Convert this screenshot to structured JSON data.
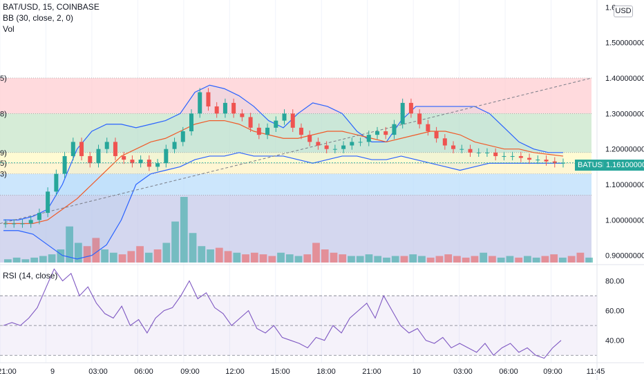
{
  "header": {
    "symbol_line": "BAT/USD, 15, COINBASE",
    "bb_line": "BB (30, close, 2, 0)",
    "vol_line": "Vol",
    "rsi_line": "RSI (14, close)"
  },
  "price_axis": {
    "currency": "USD",
    "ticks": [
      "1.6",
      "1.50000000",
      "1.40000000",
      "1.30000000",
      "1.20000000",
      "1.10000000",
      "1.00000000",
      "0.90000000"
    ],
    "last_symbol": "BATUSD",
    "last_value": "1.16100000"
  },
  "rsi_axis": {
    "ticks": [
      "80.00",
      "60.00",
      "40.00"
    ]
  },
  "time_axis": {
    "ticks": [
      "21:00",
      "9",
      "03:00",
      "06:00",
      "09:00",
      "12:00",
      "15:00",
      "18:00",
      "21:00",
      "10",
      "03:00",
      "06:00",
      "09:00",
      "11:45"
    ]
  },
  "fib_edge_labels": [
    "5)",
    "8)",
    "9)",
    "5)",
    "3)"
  ],
  "colors": {
    "up": "#26a69a",
    "down": "#ef5350",
    "bb_upper": "#2962ff",
    "bb_basis": "#f05a28",
    "rsi": "#7e57c2",
    "grid": "#f0f3fa"
  },
  "chart_data": [
    {
      "type": "candlestick",
      "title": "BAT/USD, 15, COINBASE",
      "y_range": [
        0.88,
        1.62
      ],
      "fib_levels": [
        1.4,
        1.3,
        1.19,
        1.16,
        1.13,
        1.07
      ],
      "fib_zone_colors": [
        "#ffcdd2",
        "#c8e6c9",
        "#fff9c4",
        "#fff3c4",
        "#bbdefb",
        "#c5cae9"
      ],
      "trendline": [
        [
          0.0,
          0.99
        ],
        [
          1.0,
          1.4
        ]
      ],
      "last_price": 1.161,
      "close_path": [
        0.99,
        0.99,
        0.99,
        1.0,
        1.02,
        1.08,
        1.13,
        1.18,
        1.22,
        1.18,
        1.16,
        1.2,
        1.22,
        1.18,
        1.17,
        1.16,
        1.17,
        1.15,
        1.16,
        1.2,
        1.22,
        1.25,
        1.3,
        1.36,
        1.32,
        1.3,
        1.33,
        1.3,
        1.29,
        1.26,
        1.24,
        1.26,
        1.28,
        1.3,
        1.26,
        1.24,
        1.22,
        1.21,
        1.2,
        1.2,
        1.21,
        1.22,
        1.22,
        1.24,
        1.25,
        1.24,
        1.27,
        1.33,
        1.3,
        1.27,
        1.25,
        1.23,
        1.21,
        1.2,
        1.2,
        1.19,
        1.19,
        1.19,
        1.18,
        1.18,
        1.18,
        1.175,
        1.17,
        1.17,
        1.165,
        1.16,
        1.161
      ],
      "bb_upper": [
        1.0,
        1.0,
        1.01,
        1.03,
        1.1,
        1.2,
        1.25,
        1.27,
        1.27,
        1.26,
        1.27,
        1.28,
        1.3,
        1.36,
        1.38,
        1.37,
        1.35,
        1.32,
        1.28,
        1.26,
        1.3,
        1.33,
        1.32,
        1.3,
        1.25,
        1.22,
        1.22,
        1.28,
        1.32,
        1.32,
        1.32,
        1.32,
        1.32,
        1.3,
        1.26,
        1.22,
        1.2,
        1.19,
        1.19
      ],
      "bb_basis": [
        0.99,
        0.99,
        0.99,
        1.0,
        1.03,
        1.06,
        1.1,
        1.14,
        1.18,
        1.2,
        1.22,
        1.23,
        1.25,
        1.27,
        1.28,
        1.28,
        1.27,
        1.25,
        1.24,
        1.23,
        1.23,
        1.24,
        1.25,
        1.25,
        1.24,
        1.23,
        1.22,
        1.23,
        1.24,
        1.25,
        1.25,
        1.24,
        1.22,
        1.21,
        1.2,
        1.2,
        1.19,
        1.185,
        1.18
      ],
      "bb_lower": [
        0.97,
        0.97,
        0.96,
        0.93,
        0.9,
        0.89,
        0.9,
        0.93,
        1.0,
        1.1,
        1.13,
        1.14,
        1.15,
        1.17,
        1.18,
        1.18,
        1.19,
        1.18,
        1.18,
        1.18,
        1.17,
        1.16,
        1.17,
        1.18,
        1.18,
        1.17,
        1.17,
        1.18,
        1.17,
        1.16,
        1.15,
        1.14,
        1.15,
        1.16,
        1.16,
        1.16,
        1.16,
        1.16,
        1.16
      ],
      "volume": [
        2,
        3,
        2,
        3,
        4,
        5,
        8,
        22,
        12,
        10,
        15,
        8,
        6,
        5,
        7,
        10,
        6,
        8,
        12,
        25,
        40,
        18,
        10,
        8,
        9,
        7,
        6,
        5,
        6,
        5,
        4,
        6,
        5,
        4,
        5,
        12,
        8,
        6,
        5,
        4,
        4,
        5,
        4,
        3,
        4,
        4,
        5,
        4,
        3,
        4,
        5,
        4,
        3,
        4,
        6,
        4,
        3,
        4,
        3,
        4,
        3,
        4,
        5,
        3,
        4,
        6,
        3
      ]
    },
    {
      "type": "line",
      "title": "RSI (14, close)",
      "y_range": [
        25,
        90
      ],
      "bands": [
        70,
        50,
        30
      ],
      "values": [
        50,
        52,
        50,
        55,
        62,
        75,
        88,
        80,
        85,
        70,
        76,
        65,
        58,
        55,
        63,
        50,
        54,
        45,
        55,
        60,
        62,
        70,
        80,
        68,
        72,
        62,
        58,
        50,
        55,
        60,
        48,
        45,
        50,
        42,
        40,
        38,
        35,
        42,
        40,
        50,
        45,
        55,
        60,
        65,
        55,
        70,
        60,
        50,
        45,
        48,
        40,
        38,
        42,
        35,
        38,
        35,
        32,
        38,
        30,
        35,
        38,
        32,
        35,
        30,
        28,
        35,
        40
      ]
    }
  ]
}
